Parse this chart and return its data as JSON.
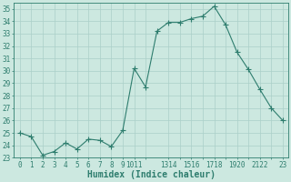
{
  "x": [
    0,
    1,
    2,
    3,
    4,
    5,
    6,
    7,
    8,
    9,
    10,
    11,
    12,
    13,
    14,
    15,
    16,
    17,
    18,
    19,
    20,
    21,
    22,
    23
  ],
  "y": [
    25.0,
    24.7,
    23.2,
    23.5,
    24.2,
    23.7,
    24.5,
    24.4,
    23.9,
    25.2,
    30.2,
    28.7,
    33.2,
    33.9,
    33.9,
    34.2,
    34.4,
    35.2,
    33.7,
    31.5,
    30.1,
    28.5,
    27.0,
    26.0
  ],
  "line_color": "#2e7d6e",
  "marker": "+",
  "marker_size": 4,
  "bg_color": "#cce8e0",
  "grid_color": "#aacfc8",
  "grid_color_minor": "#c0ddd8",
  "xlabel": "Humidex (Indice chaleur)",
  "xlim": [
    -0.5,
    23.5
  ],
  "ylim": [
    23,
    35.5
  ],
  "yticks": [
    23,
    24,
    25,
    26,
    27,
    28,
    29,
    30,
    31,
    32,
    33,
    34,
    35
  ],
  "xtick_positions": [
    0,
    1,
    2,
    3,
    4,
    5,
    6,
    7,
    8,
    9,
    10,
    11,
    13,
    14,
    15,
    16,
    17,
    18,
    19,
    20,
    21,
    22,
    23
  ],
  "xtick_labels": [
    "0",
    "1",
    "2",
    "3",
    "4",
    "5",
    "6",
    "7",
    "8",
    "9",
    "1011",
    "",
    "1314",
    "",
    "1516",
    "",
    "1718",
    "",
    "1920",
    "",
    "2122",
    "",
    "23"
  ]
}
